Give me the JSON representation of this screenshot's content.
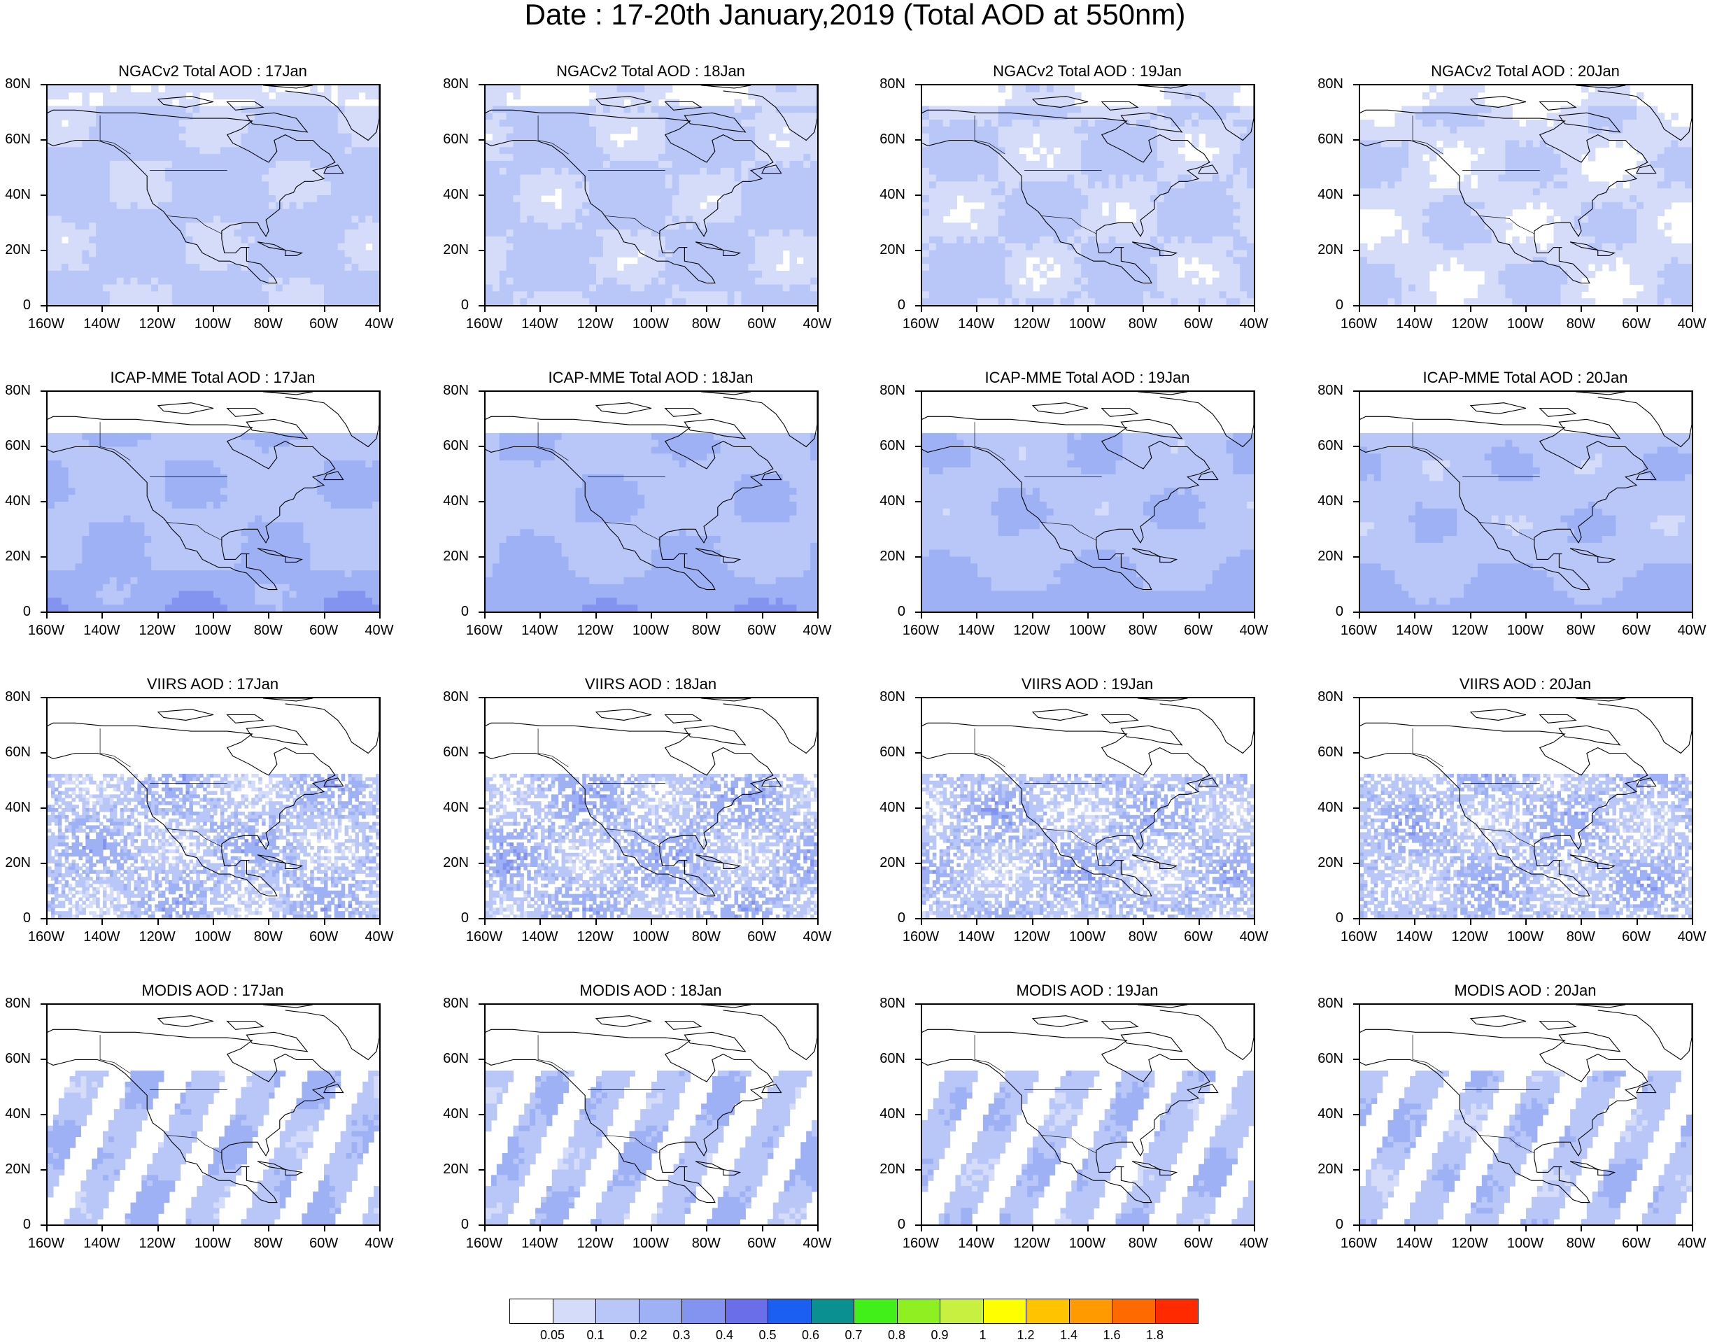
{
  "title": "Date : 17-20th January,2019 (Total AOD at 550nm)",
  "axes": {
    "lat_labels": [
      "80N",
      "60N",
      "40N",
      "20N",
      "0"
    ],
    "lon_labels": [
      "160W",
      "140W",
      "120W",
      "100W",
      "80W",
      "60W",
      "40W"
    ]
  },
  "panels": [
    {
      "title": "NGACv2 Total AOD : 17Jan",
      "product": "model",
      "level": 0.12
    },
    {
      "title": "NGACv2 Total AOD : 18Jan",
      "product": "model",
      "level": 0.11
    },
    {
      "title": "NGACv2 Total AOD : 19Jan",
      "product": "model",
      "level": 0.1
    },
    {
      "title": "NGACv2 Total AOD : 20Jan",
      "product": "model",
      "level": 0.08
    },
    {
      "title": "ICAP-MME Total AOD : 17Jan",
      "product": "ensemble",
      "level": 0.18
    },
    {
      "title": "ICAP-MME Total AOD : 18Jan",
      "product": "ensemble",
      "level": 0.18
    },
    {
      "title": "ICAP-MME Total AOD : 19Jan",
      "product": "ensemble",
      "level": 0.17
    },
    {
      "title": "ICAP-MME Total AOD : 20Jan",
      "product": "ensemble",
      "level": 0.16
    },
    {
      "title": "VIIRS AOD : 17Jan",
      "product": "satellite",
      "level": 0.15
    },
    {
      "title": "VIIRS AOD : 18Jan",
      "product": "satellite",
      "level": 0.16
    },
    {
      "title": "VIIRS AOD : 19Jan",
      "product": "satellite",
      "level": 0.15
    },
    {
      "title": "VIIRS AOD : 20Jan",
      "product": "satellite",
      "level": 0.15
    },
    {
      "title": "MODIS AOD : 17Jan",
      "product": "swath",
      "level": 0.17
    },
    {
      "title": "MODIS AOD : 18Jan",
      "product": "swath",
      "level": 0.17
    },
    {
      "title": "MODIS AOD : 19Jan",
      "product": "swath",
      "level": 0.16
    },
    {
      "title": "MODIS AOD : 20Jan",
      "product": "swath",
      "level": 0.16
    }
  ],
  "colorbar": {
    "labels": [
      "0.05",
      "0.1",
      "0.2",
      "0.3",
      "0.4",
      "0.5",
      "0.6",
      "0.7",
      "0.8",
      "0.9",
      "1",
      "1.2",
      "1.4",
      "1.6",
      "1.8"
    ],
    "colors": [
      "#ffffff",
      "#d5dcfa",
      "#b9c6f8",
      "#9fb1f5",
      "#8393f0",
      "#6a6ee9",
      "#1a5ef2",
      "#0a9090",
      "#40f018",
      "#8ef020",
      "#c8f040",
      "#ffff00",
      "#ffc400",
      "#ff9a00",
      "#ff6a00",
      "#ff2a00"
    ]
  }
}
